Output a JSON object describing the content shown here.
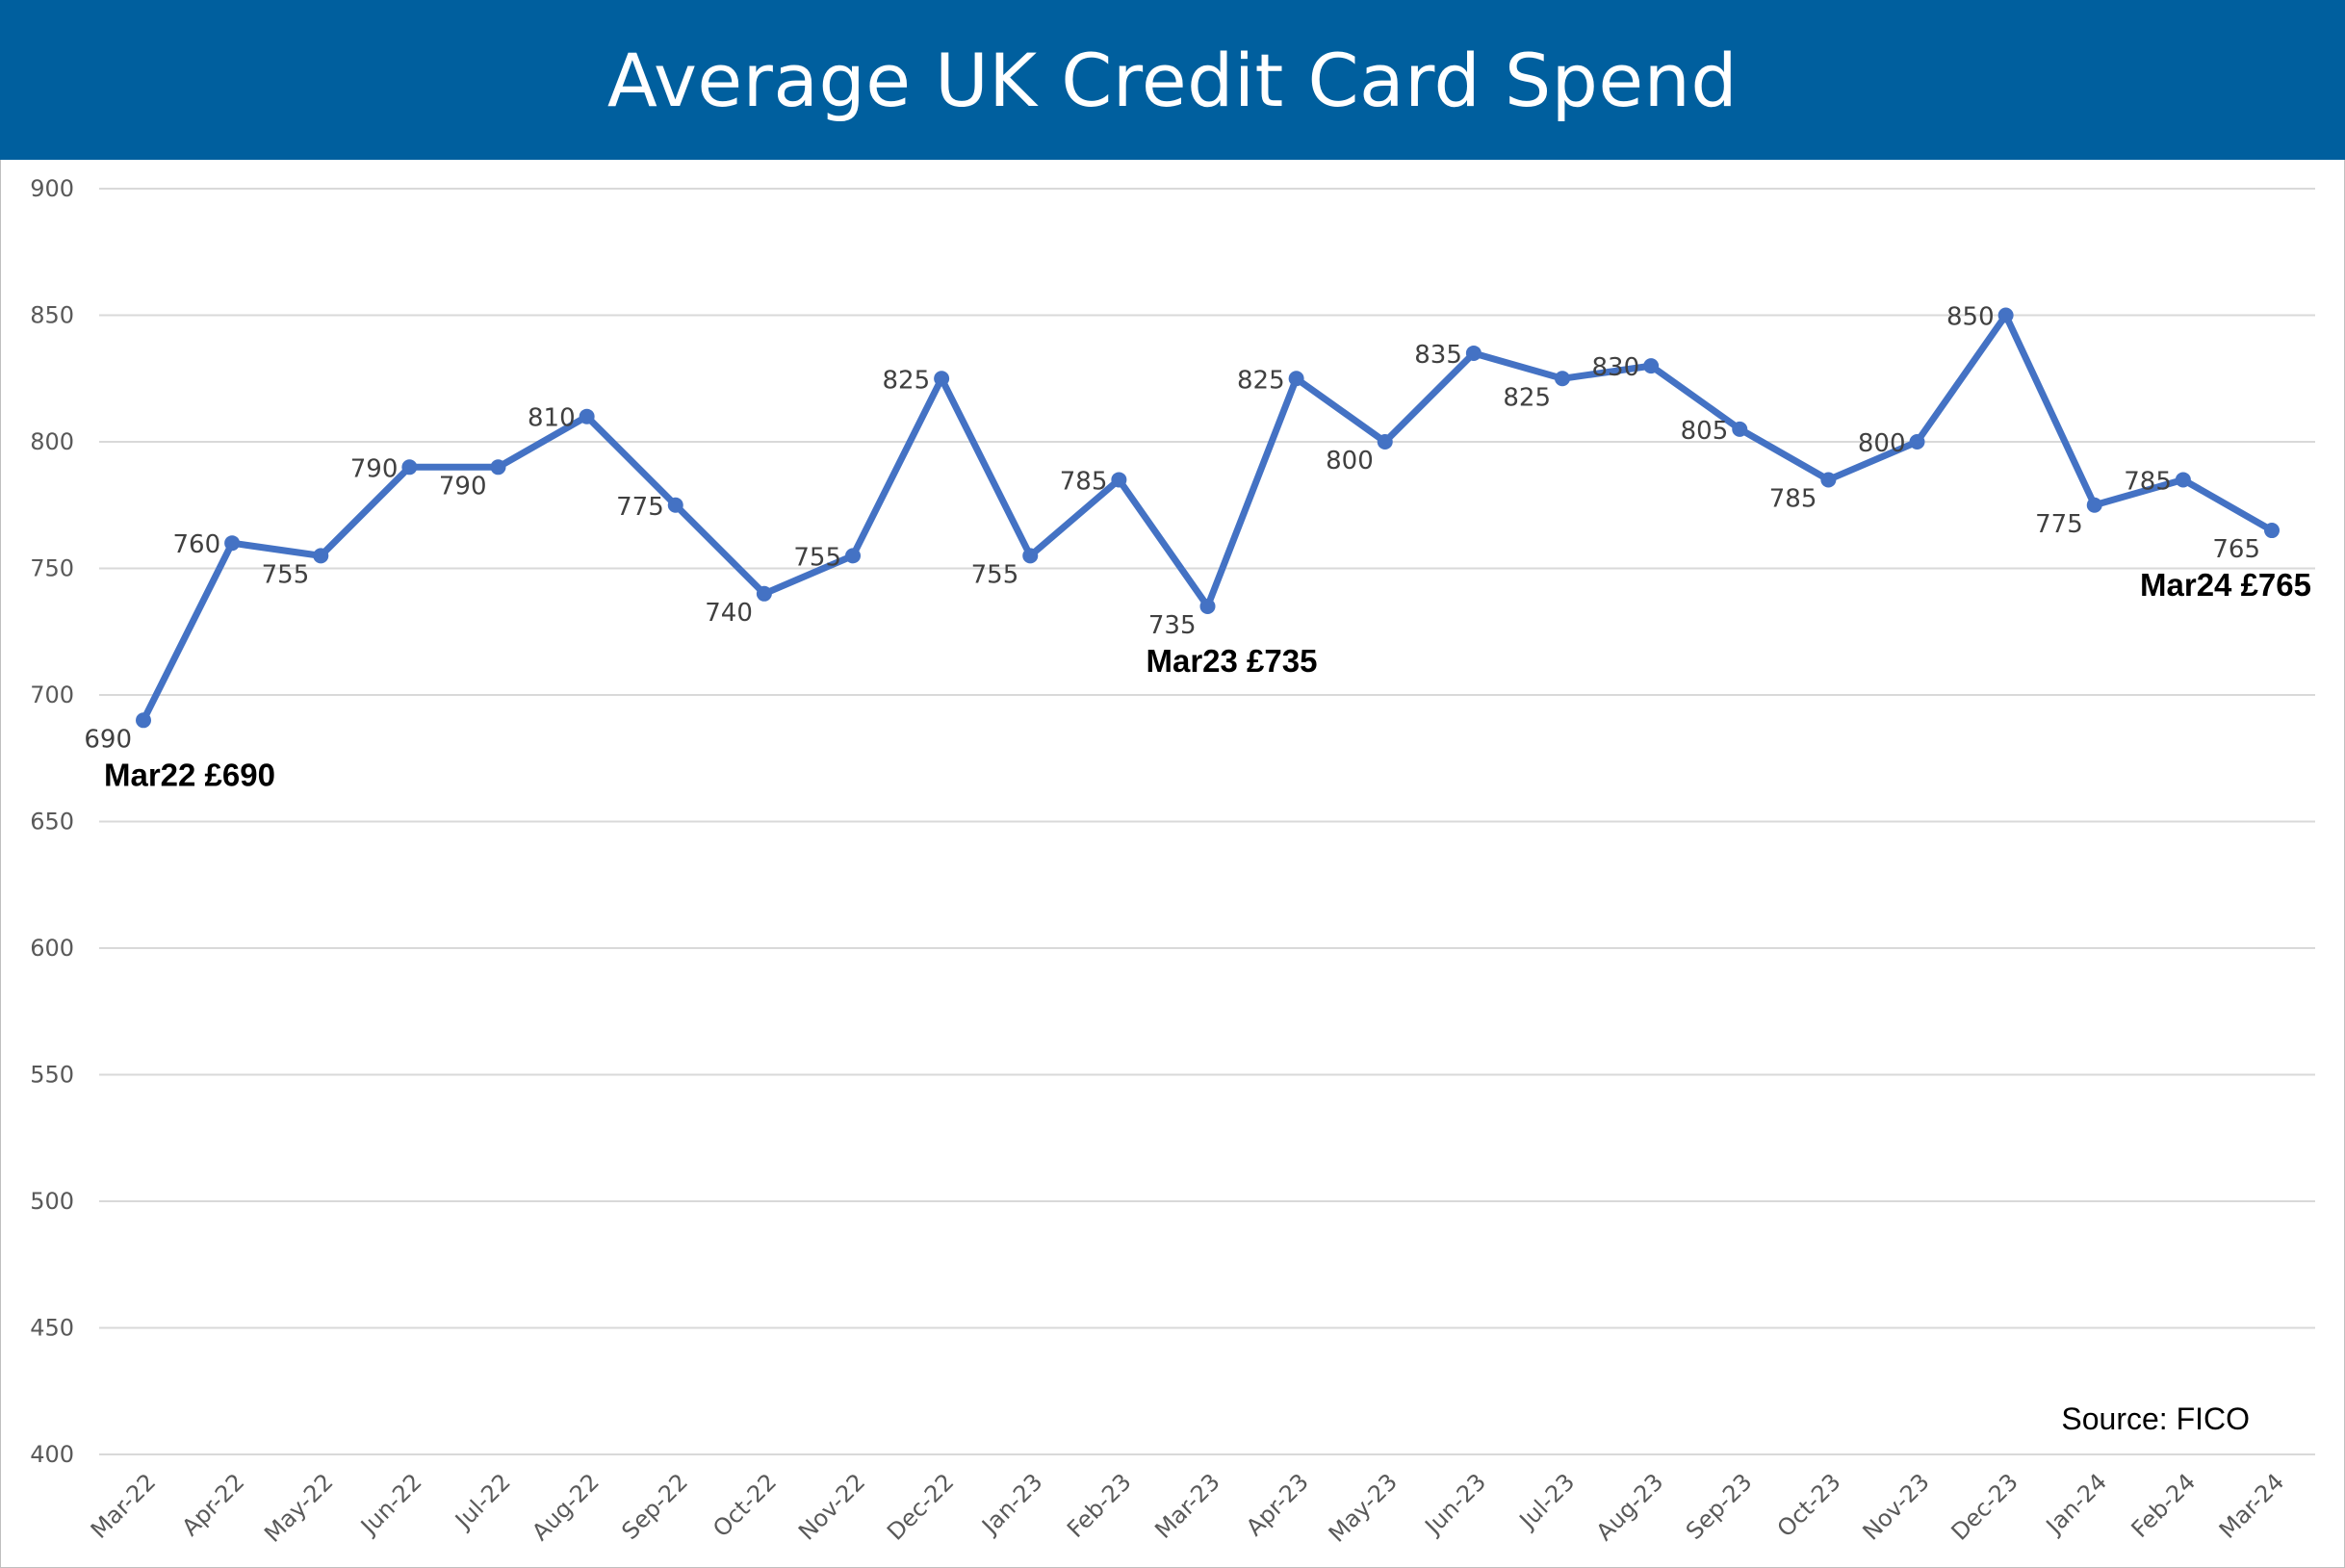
{
  "chart_data": {
    "type": "line",
    "title": "Average UK Credit Card Spend",
    "categories": [
      "Mar-22",
      "Apr-22",
      "May-22",
      "Jun-22",
      "Jul-22",
      "Aug-22",
      "Sep-22",
      "Oct-22",
      "Nov-22",
      "Dec-22",
      "Jan-23",
      "Feb-23",
      "Mar-23",
      "Apr-23",
      "May-23",
      "Jun-23",
      "Jul-23",
      "Aug-23",
      "Sep-23",
      "Oct-23",
      "Nov-23",
      "Dec-23",
      "Jan-24",
      "Feb-24",
      "Mar-24"
    ],
    "series": [
      {
        "values": [
          690,
          760,
          755,
          790,
          790,
          810,
          775,
          740,
          755,
          825,
          755,
          785,
          735,
          825,
          800,
          835,
          825,
          830,
          805,
          785,
          800,
          850,
          775,
          785,
          765
        ]
      }
    ],
    "ylim": [
      400,
      900
    ],
    "yticks": [
      400,
      450,
      500,
      550,
      600,
      650,
      700,
      750,
      800,
      850,
      900
    ],
    "grid": true,
    "legend": "none",
    "annotations": [
      {
        "category": "Mar-22",
        "text": "Mar22 £690"
      },
      {
        "category": "Mar-23",
        "text": "Mar23 £735"
      },
      {
        "category": "Mar-24",
        "text": "Mar24 £765"
      }
    ],
    "source": "Source: FICO",
    "line_color": "#4472c4",
    "banner_color": "#005f9e"
  }
}
